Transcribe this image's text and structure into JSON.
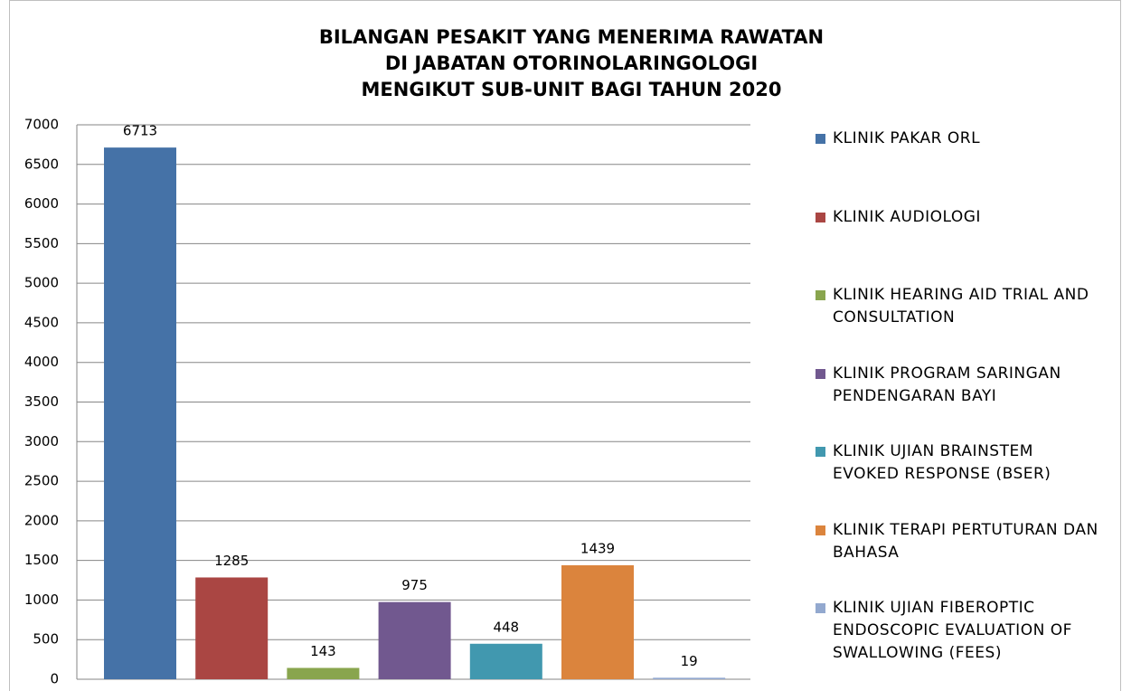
{
  "chart_data": {
    "type": "bar",
    "title": [
      "BILANGAN PESAKIT YANG MENERIMA RAWATAN",
      "DI JABATAN OTORINOLARINGOLOGI",
      "MENGIKUT SUB-UNIT BAGI TAHUN 2020"
    ],
    "series": [
      {
        "name": "KLINIK PAKAR ORL",
        "color": "#4572a7",
        "values": [
          6713
        ]
      },
      {
        "name": "KLINIK AUDIOLOGI",
        "color": "#aa4643",
        "values": [
          1285
        ]
      },
      {
        "name": "KLINIK HEARING AID TRIAL AND CONSULTATION",
        "color": "#89a54e",
        "values": [
          143
        ]
      },
      {
        "name": "KLINIK PROGRAM SARINGAN PENDENGARAN BAYI",
        "color": "#71588f",
        "values": [
          975
        ]
      },
      {
        "name": "KLINIK UJIAN BRAINSTEM EVOKED RESPONSE (BSER)",
        "color": "#4198af",
        "values": [
          448
        ]
      },
      {
        "name": "KLINIK TERAPI PERTUTURAN DAN BAHASA",
        "color": "#db843d",
        "values": [
          1439
        ]
      },
      {
        "name": "KLINIK UJIAN FIBEROPTIC ENDOSCOPIC EVALUATION OF SWALLOWING (FEES)",
        "color": "#93a9cf",
        "values": [
          19
        ]
      }
    ],
    "ylim": [
      0,
      7000
    ],
    "yticks": [
      0,
      500,
      1000,
      1500,
      2000,
      2500,
      3000,
      3500,
      4000,
      4500,
      5000,
      5500,
      6000,
      6500,
      7000
    ],
    "grid": true,
    "legend": "right"
  }
}
